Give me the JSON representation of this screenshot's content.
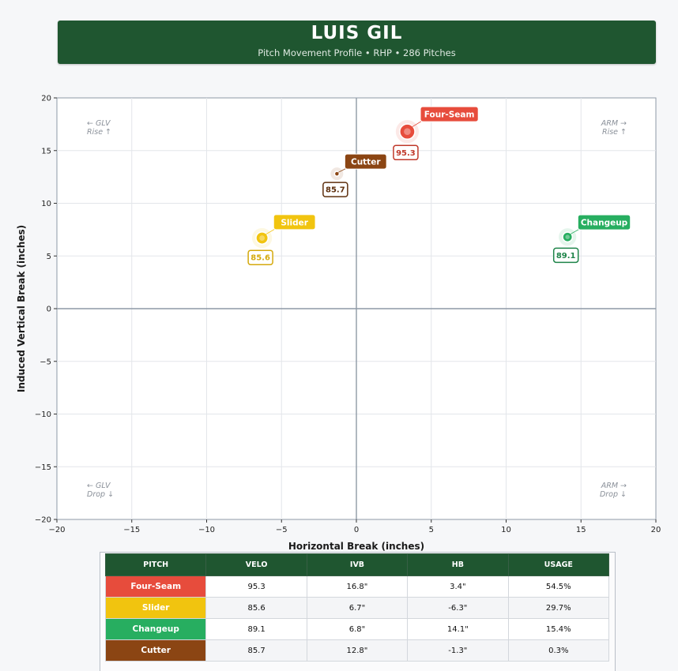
{
  "header": {
    "title": "LUIS GIL",
    "subtitle": "Pitch Movement Profile  •  RHP  •  286 Pitches"
  },
  "chart_data": {
    "type": "scatter",
    "xlabel": "Horizontal Break (inches)",
    "ylabel": "Induced Vertical Break (inches)",
    "xlim": [
      -20,
      20
    ],
    "ylim": [
      -20,
      20
    ],
    "xticks": [
      -20,
      -15,
      -10,
      -5,
      0,
      5,
      10,
      15,
      20
    ],
    "yticks": [
      -20,
      -15,
      -10,
      -5,
      0,
      5,
      10,
      15,
      20
    ],
    "grid": true,
    "corner_labels": {
      "top_left": [
        "← GLV",
        "Rise ↑"
      ],
      "top_right": [
        "ARM →",
        "Rise ↑"
      ],
      "bottom_left": [
        "← GLV",
        "Drop ↓"
      ],
      "bottom_right": [
        "ARM →",
        "Drop ↓"
      ]
    },
    "series": [
      {
        "name": "Four-Seam",
        "x": 3.4,
        "y": 16.8,
        "velo": "95.3",
        "usage": 54.5,
        "color": "#e74c3c",
        "velo_color": "#c0392b"
      },
      {
        "name": "Slider",
        "x": -6.3,
        "y": 6.7,
        "velo": "85.6",
        "usage": 29.7,
        "color": "#f1c40f",
        "velo_color": "#d4a90c"
      },
      {
        "name": "Changeup",
        "x": 14.1,
        "y": 6.8,
        "velo": "89.1",
        "usage": 15.4,
        "color": "#27ae60",
        "velo_color": "#1e8449"
      },
      {
        "name": "Cutter",
        "x": -1.3,
        "y": 12.8,
        "velo": "85.7",
        "usage": 0.3,
        "color": "#8b4513",
        "velo_color": "#5d2e0c"
      }
    ]
  },
  "table": {
    "headers": [
      "PITCH",
      "VELO",
      "IVB",
      "HB",
      "USAGE"
    ],
    "rows": [
      {
        "pitch": "Four-Seam",
        "velo": "95.3",
        "ivb": "16.8\"",
        "hb": "3.4\"",
        "usage": "54.5%",
        "color": "#e74c3c"
      },
      {
        "pitch": "Slider",
        "velo": "85.6",
        "ivb": "6.7\"",
        "hb": "-6.3\"",
        "usage": "29.7%",
        "color": "#f1c40f"
      },
      {
        "pitch": "Changeup",
        "velo": "89.1",
        "ivb": "6.8\"",
        "hb": "14.1\"",
        "usage": "15.4%",
        "color": "#27ae60"
      },
      {
        "pitch": "Cutter",
        "velo": "85.7",
        "ivb": "12.8\"",
        "hb": "-1.3\"",
        "usage": "0.3%",
        "color": "#8b4513"
      }
    ]
  }
}
